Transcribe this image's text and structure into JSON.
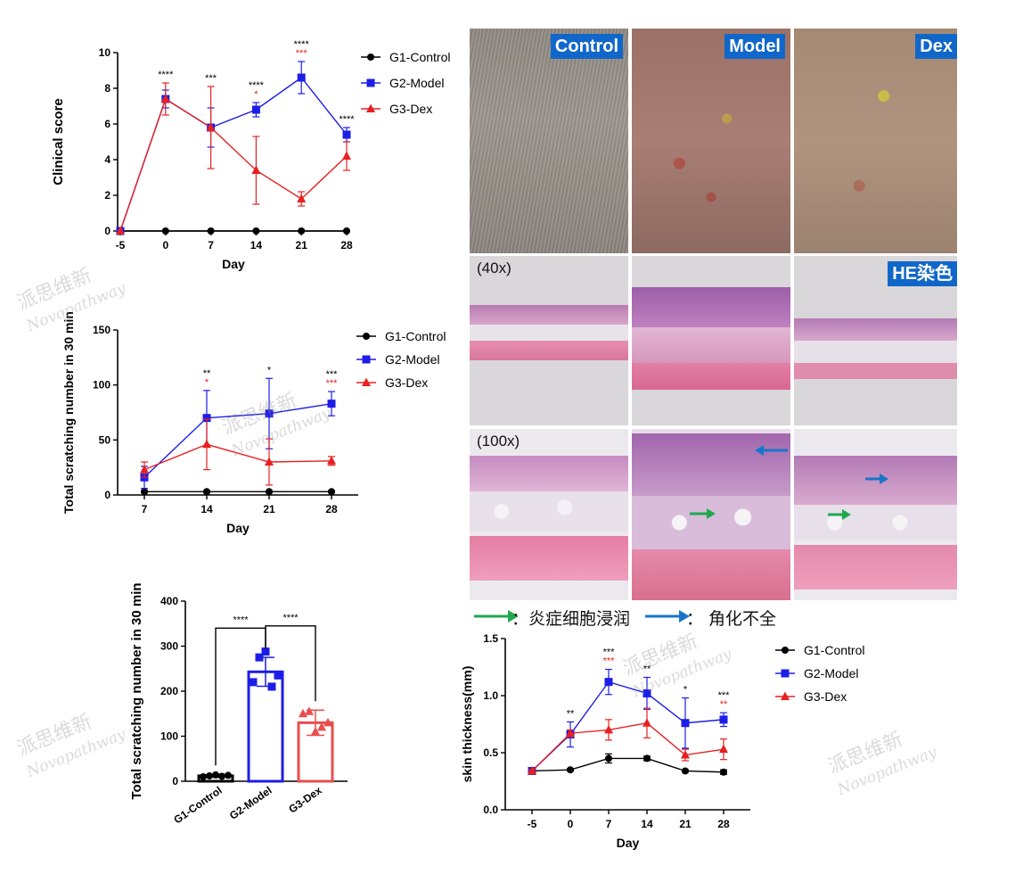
{
  "chart_data": [
    {
      "id": "clinical",
      "type": "line",
      "ylabel": "Clinical score",
      "xlabel": "Day",
      "x": [
        "-5",
        "0",
        "7",
        "14",
        "21",
        "28"
      ],
      "ylim": [
        0,
        10
      ],
      "yticks": [
        "0",
        "2",
        "4",
        "6",
        "8",
        "10"
      ],
      "series": [
        {
          "name": "G1-Control",
          "color": "#000000",
          "marker": "circle",
          "values": [
            0,
            0,
            0,
            0,
            0,
            0
          ],
          "err": [
            0,
            0,
            0,
            0,
            0,
            0
          ]
        },
        {
          "name": "G2-Model",
          "color": "#1d1de8",
          "marker": "square",
          "values": [
            0,
            7.4,
            5.8,
            6.8,
            8.6,
            5.4
          ],
          "err": [
            0,
            0.5,
            1.1,
            0.4,
            0.9,
            0.4
          ]
        },
        {
          "name": "G3-Dex",
          "color": "#e82020",
          "marker": "triangle",
          "values": [
            0,
            7.4,
            5.8,
            3.4,
            1.8,
            4.2
          ],
          "err": [
            0,
            0.9,
            2.3,
            1.9,
            0.4,
            0.8
          ]
        }
      ],
      "annotations": [
        {
          "x": "0",
          "black": "****",
          "red": ""
        },
        {
          "x": "7",
          "black": "***",
          "red": ""
        },
        {
          "x": "14",
          "black": "****",
          "red": "*"
        },
        {
          "x": "21",
          "black": "****",
          "red": "***"
        },
        {
          "x": "28",
          "black": "****",
          "red": ""
        }
      ]
    },
    {
      "id": "scratch_time",
      "type": "line",
      "ylabel": "Total scratching number in 30 min",
      "xlabel": "Day",
      "x": [
        "7",
        "14",
        "21",
        "28"
      ],
      "ylim": [
        0,
        150
      ],
      "yticks": [
        "0",
        "50",
        "100",
        "150"
      ],
      "series": [
        {
          "name": "G1-Control",
          "color": "#000000",
          "marker": "circle",
          "values": [
            3,
            3,
            3,
            3
          ],
          "err": [
            1,
            1,
            1,
            1
          ]
        },
        {
          "name": "G2-Model",
          "color": "#1d1de8",
          "marker": "square",
          "values": [
            16,
            70,
            74,
            83
          ],
          "err": [
            10,
            25,
            32,
            11
          ]
        },
        {
          "name": "G3-Dex",
          "color": "#e82020",
          "marker": "triangle",
          "values": [
            23,
            46,
            30,
            31
          ],
          "err": [
            7,
            23,
            21,
            4
          ]
        }
      ],
      "annotations": [
        {
          "x": "14",
          "black": "**",
          "red": "*"
        },
        {
          "x": "21",
          "black": "*",
          "red": ""
        },
        {
          "x": "28",
          "black": "***",
          "red": "***"
        }
      ]
    },
    {
      "id": "scratch_bar",
      "type": "bar",
      "ylabel": "Total scratching number in 30 min",
      "xlabel": "",
      "categories": [
        "G1-Control",
        "G2-Model",
        "G3-Dex"
      ],
      "ylim": [
        0,
        400
      ],
      "yticks": [
        "0",
        "100",
        "200",
        "300",
        "400"
      ],
      "values": [
        12,
        243,
        130
      ],
      "err": [
        3,
        32,
        28
      ],
      "colors": [
        "#000000",
        "#1d1de8",
        "#e84e4e"
      ],
      "points": [
        [
          10,
          12,
          14,
          11,
          13
        ],
        [
          220,
          275,
          288,
          210,
          235
        ],
        [
          150,
          155,
          110,
          120,
          130
        ]
      ],
      "significance": [
        {
          "from": "G1-Control",
          "to": "G2-Model",
          "label": "****"
        },
        {
          "from": "G2-Model",
          "to": "G3-Dex",
          "label": "****"
        }
      ]
    },
    {
      "id": "thickness",
      "type": "line",
      "ylabel": "skin thickness(mm)",
      "xlabel": "Day",
      "x": [
        "-5",
        "0",
        "7",
        "14",
        "21",
        "28"
      ],
      "ylim": [
        0,
        1.5
      ],
      "yticks": [
        "0.0",
        "0.5",
        "1.0",
        "1.5"
      ],
      "series": [
        {
          "name": "G1-Control",
          "color": "#000000",
          "marker": "circle",
          "values": [
            0.34,
            0.35,
            0.45,
            0.45,
            0.34,
            0.33
          ],
          "err": [
            0.01,
            0.01,
            0.04,
            0.02,
            0.01,
            0.02
          ]
        },
        {
          "name": "G2-Model",
          "color": "#1d1de8",
          "marker": "square",
          "values": [
            0.34,
            0.66,
            1.12,
            1.02,
            0.76,
            0.79
          ],
          "err": [
            0.01,
            0.11,
            0.11,
            0.14,
            0.22,
            0.06
          ]
        },
        {
          "name": "G3-Dex",
          "color": "#e82020",
          "marker": "triangle",
          "values": [
            0.34,
            0.67,
            0.7,
            0.76,
            0.48,
            0.53
          ],
          "err": [
            0.01,
            0.03,
            0.09,
            0.13,
            0.05,
            0.09
          ]
        }
      ],
      "annotations": [
        {
          "x": "0",
          "black": "**",
          "red": ""
        },
        {
          "x": "7",
          "black": "***",
          "red": "***"
        },
        {
          "x": "14",
          "black": "**",
          "red": ""
        },
        {
          "x": "21",
          "black": "*",
          "red": ""
        },
        {
          "x": "28",
          "black": "***",
          "red": "**"
        }
      ]
    }
  ],
  "photos": {
    "labels": [
      "Control",
      "Model",
      "Dex"
    ],
    "he_label": "HE染色",
    "mag_40": "(40x)",
    "mag_100": "(100x)"
  },
  "arrow_legend": {
    "green_text": "：炎症细胞浸润",
    "blue_text": "：  角化不全",
    "green_color": "#1fa84f",
    "blue_color": "#1876c9"
  },
  "watermark": {
    "cn": "派思维新",
    "en": "Novopathway"
  }
}
